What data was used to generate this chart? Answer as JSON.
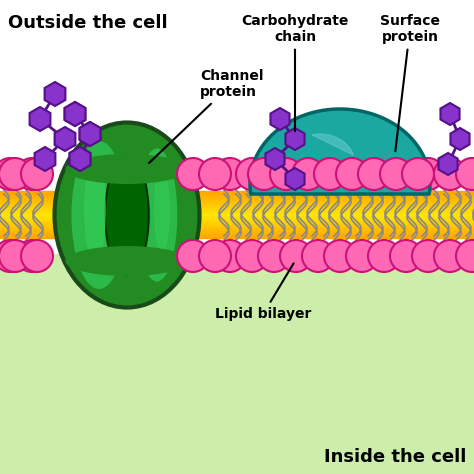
{
  "title_outside": "Outside the cell",
  "title_inside": "Inside the cell",
  "label_channel": "Channel\nprotein",
  "label_carbo": "Carbohydrate\nchain",
  "label_surface": "Surface\nprotein",
  "label_lipid": "Lipid bilayer",
  "head_color": "#FF69B4",
  "head_edge": "#cc1177",
  "tail_color": "#888888",
  "channel_outer": "#228B22",
  "channel_mid": "#1a7a1a",
  "channel_dark": "#006400",
  "channel_light": "#33cc55",
  "channel_vlight": "#55dd77",
  "surface_color": "#1aA8A0",
  "surface_edge": "#006666",
  "surface_highlight": "#66CCCC",
  "carbo_color": "#8833CC",
  "carbo_edge": "#551188",
  "orange_band": "#FFA500",
  "orange_light": "#FFD070",
  "inside_green": "#CCEEAA",
  "figsize": [
    4.74,
    4.74
  ],
  "dpi": 100
}
